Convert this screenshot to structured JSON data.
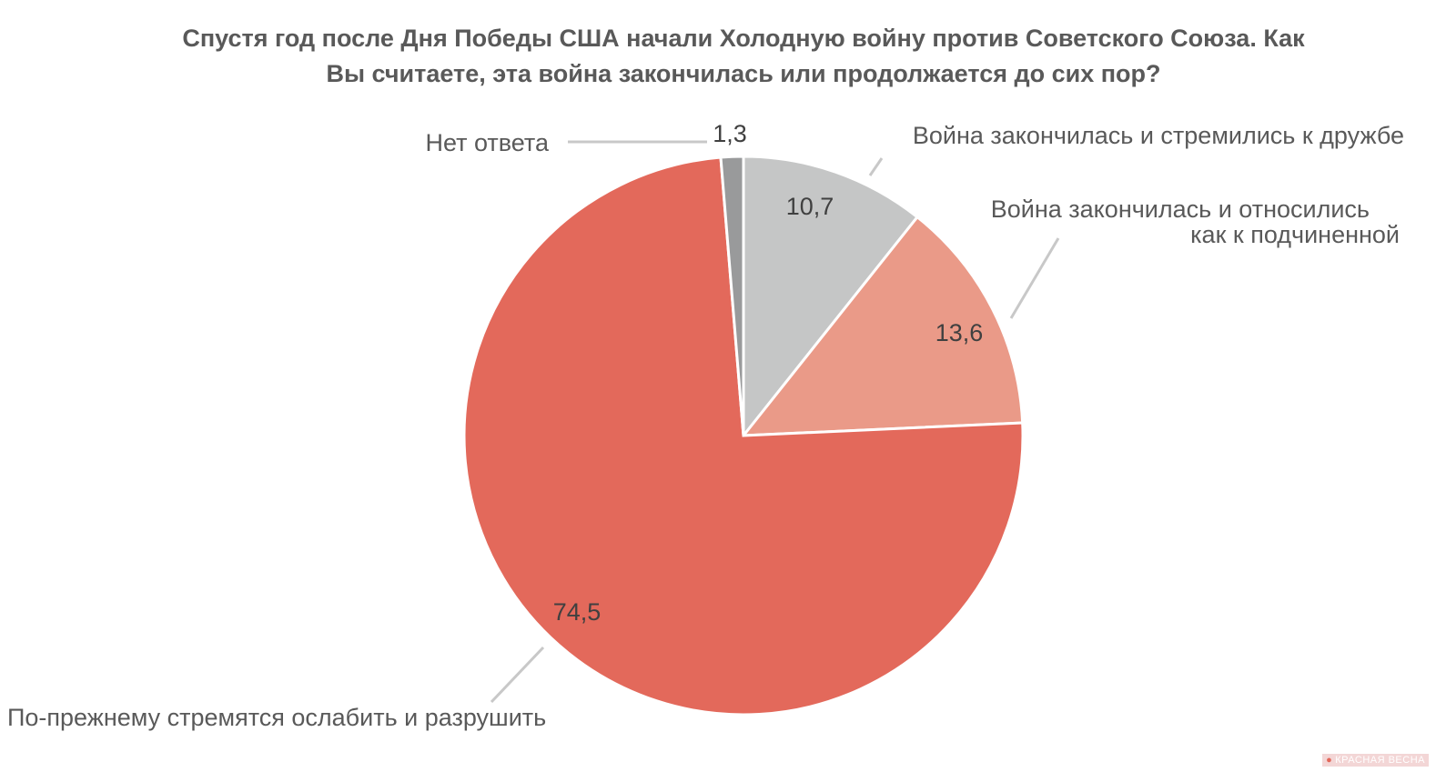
{
  "title_lines": [
    "Спустя год после Дня Победы США начали Холодную войну против Советского Союза. Как",
    "Вы считаете, эта война закончилась или продолжается до сих пор?"
  ],
  "watermark": "КРАСНАЯ ВЕСНА",
  "chart_data": {
    "type": "pie",
    "title": "Спустя год после Дня Победы США начали Холодную войну против Советского Союза. Как Вы считаете, эта война закончилась или продолжается до сих пор?",
    "start_angle": "12 o'clock",
    "direction": "clockwise",
    "slices": [
      {
        "label": "Война закончилась и стремились к дружбе",
        "label_lines": [
          "Война закончилась и стремились к дружбе"
        ],
        "value": 10.7,
        "value_text": "10,7",
        "color": "#c5c6c6"
      },
      {
        "label": "Война закончилась и относились как к подчиненной",
        "label_lines": [
          "Война закончилась и относились",
          "как к подчиненной"
        ],
        "value": 13.6,
        "value_text": "13,6",
        "color": "#ea9a88"
      },
      {
        "label": "По-прежнему стремятся ослабить и разрушить",
        "label_lines": [
          "По-прежнему стремятся ослабить и разрушить"
        ],
        "value": 74.5,
        "value_text": "74,5",
        "color": "#e3695b"
      },
      {
        "label": "Нет ответа",
        "label_lines": [
          "Нет ответа"
        ],
        "value": 1.3,
        "value_text": "1,3",
        "color": "#999a9b"
      }
    ]
  }
}
